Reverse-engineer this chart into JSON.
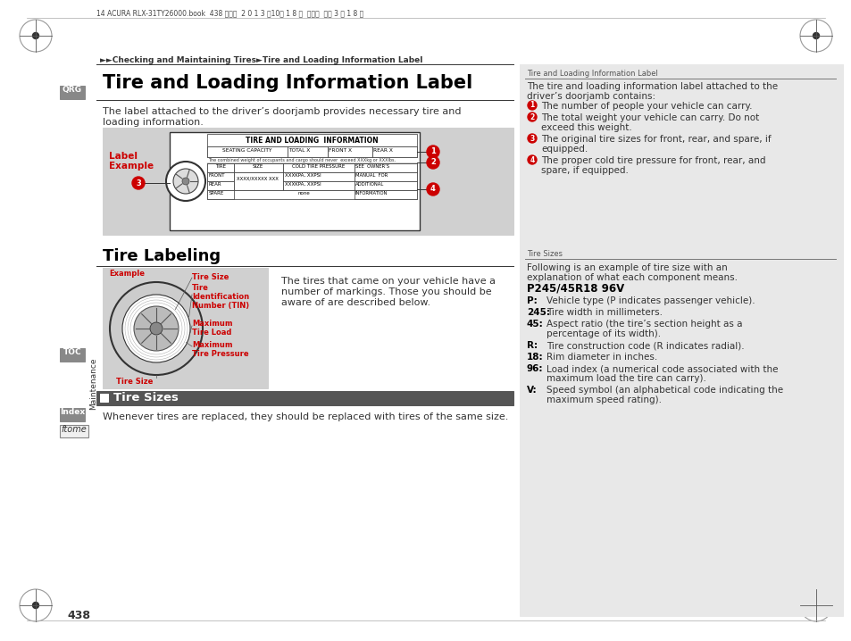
{
  "bg_color": "#ffffff",
  "header_text": "14 ACURA RLX-31TY26000.book  438 ページ  2 0 1 3 年10月 1 8 日  月曜日  午後 3 時 1 8 分",
  "breadcrumb": "►►Checking and Maintaining Tires►Tire and Loading Information Label",
  "main_title": "Tire and Loading Information Label",
  "qrg_label": "QRG",
  "body_text_1": "The label attached to the driver’s doorjamb provides necessary tire and",
  "body_text_2": "loading information.",
  "tire_label_title": "TIRE AND LOADING  INFORMATION",
  "tire_label_seating": "SEATING CAPACITY",
  "tire_label_total": "TOTAL X",
  "tire_label_front_col": "FRONT X",
  "tire_label_rear": "REAR X",
  "tire_label_combined": "The combined weight of occupants and cargo should never  exceed XXXkg or XXXlbs.",
  "tire_label_tire": "TIRE",
  "tire_label_size": "SIZE",
  "tire_label_cold": "COLD TIRE PRESSURE",
  "tire_label_see": "SEE  OWNER’S",
  "tire_label_front_row": "FRONT",
  "tire_label_front_size": "XXXX/XXXXX XXX",
  "tire_label_front_psi": "XXXKPA, XXPSI",
  "tire_label_manual": "MANUAL  FOR",
  "tire_label_rear_row": "REAR",
  "tire_label_rear_psi": "XXXKPA, XXPSI",
  "tire_label_additional": "ADDITIONAL",
  "tire_label_spare_row": "SPARE",
  "tire_label_spare_val": "none",
  "tire_label_information": "INFORMATION",
  "section2_title": "Tire Labeling",
  "tire_size_label": "Tire Size",
  "tire_labeling_text_1": "The tires that came on your vehicle have a",
  "tire_labeling_text_2": "number of markings. Those you should be",
  "tire_labeling_text_3": "aware of are described below.",
  "section3_title": "Tire Sizes",
  "section3_body": "Whenever tires are replaced, they should be replaced with tires of the same size.",
  "right_panel_header1": "Tire and Loading Information Label",
  "right_panel_body1a": "The tire and loading information label attached to the",
  "right_panel_body1b": "driver’s doorjamb contains:",
  "right_panel_item1": "The number of people your vehicle can carry.",
  "right_panel_item2a": "The total weight your vehicle can carry. Do not",
  "right_panel_item2b": "exceed this weight.",
  "right_panel_item3a": "The original tire sizes for front, rear, and spare, if",
  "right_panel_item3b": "equipped.",
  "right_panel_item4a": "The proper cold tire pressure for front, rear, and",
  "right_panel_item4b": "spare, if equipped.",
  "right_panel_header2": "Tire Sizes",
  "right_panel_body2a": "Following is an example of tire size with an",
  "right_panel_body2b": "explanation of what each component means.",
  "right_panel_tire_size": "P245/45R18 96V",
  "right_panel_items": [
    [
      "P:",
      "Vehicle type (P indicates passenger vehicle)."
    ],
    [
      "245:",
      "Tire width in millimeters."
    ],
    [
      "45:",
      "Aspect ratio (the tire’s section height as a",
      "percentage of its width)."
    ],
    [
      "R:",
      "Tire construction code (R indicates radial)."
    ],
    [
      "18:",
      "Rim diameter in inches."
    ],
    [
      "96:",
      "Load index (a numerical code associated with the",
      "maximum load the tire can carry)."
    ],
    [
      "V:",
      "Speed symbol (an alphabetical code indicating the",
      "maximum speed rating)."
    ]
  ],
  "toc_label": "TOC",
  "index_label": "Index",
  "home_label": "ftome",
  "page_number": "438",
  "maintenance_label": "Maintenance",
  "red_color": "#cc0000",
  "gray_bg": "#d0d0d0",
  "panel_gray": "#e8e8e8",
  "sidebar_gray": "#888888"
}
